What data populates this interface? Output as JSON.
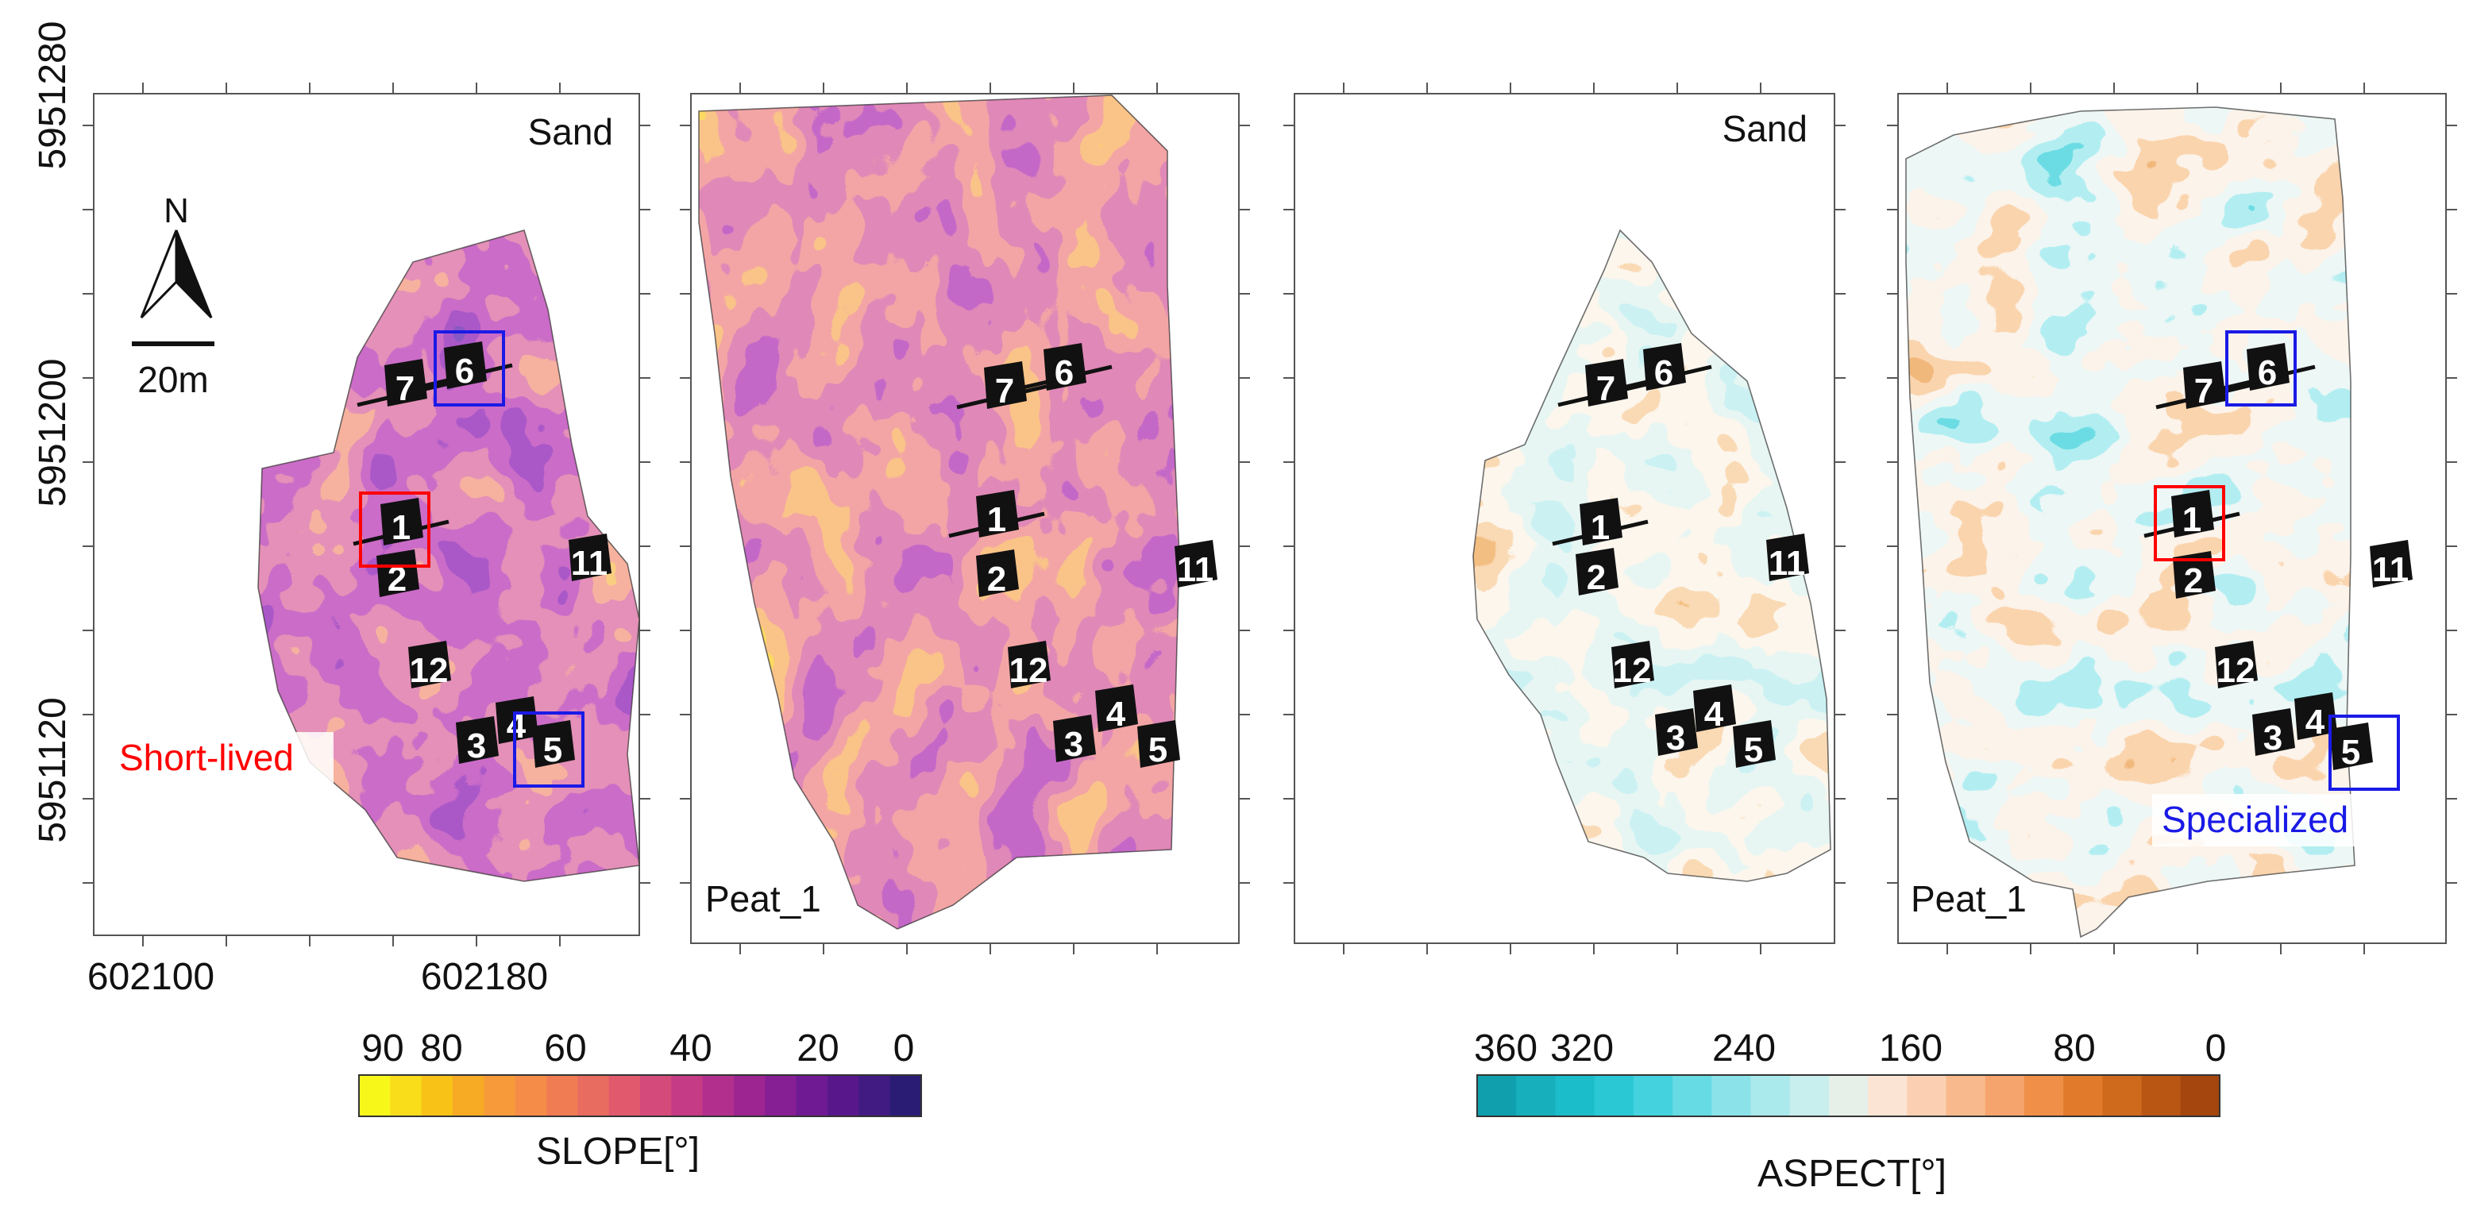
{
  "y_axis_ticks": [
    "5951280",
    "5951200",
    "5951120"
  ],
  "x_axis_ticks": [
    "602100",
    "602180"
  ],
  "panels": [
    {
      "label": "Sand"
    },
    {
      "label": "Peat_1"
    },
    {
      "label": "Sand"
    },
    {
      "label": "Peat_1"
    }
  ],
  "north_arrow": {
    "letter": "N",
    "scale_text": "20m"
  },
  "annotations": {
    "short_lived": "Short-lived",
    "specialized": "Specialized"
  },
  "site_labels": [
    "1",
    "2",
    "3",
    "4",
    "5",
    "6",
    "7",
    "11",
    "12"
  ],
  "slope_legend": {
    "title": "SLOPE[°]",
    "ticks": [
      "90",
      "80",
      "60",
      "40",
      "20",
      "0"
    ],
    "colors": [
      "#f8f71a",
      "#f9dc1a",
      "#f8c217",
      "#f7aa24",
      "#f79a3a",
      "#f58d48",
      "#f07c53",
      "#e96c60",
      "#e0596d",
      "#d44a7b",
      "#c53b86",
      "#b32f8e",
      "#9d2592",
      "#861e94",
      "#6f1a93",
      "#58188c",
      "#411a82",
      "#2a1c74"
    ],
    "color_names": [
      "yellow-high-slope",
      "purple-low-slope"
    ]
  },
  "aspect_legend": {
    "title": "ASPECT[°]",
    "ticks": [
      "360",
      "320",
      "240",
      "160",
      "80",
      "0"
    ],
    "colors": [
      "#10a0ad",
      "#18afbd",
      "#1cbdcb",
      "#2ac8d5",
      "#44d2de",
      "#66dbe4",
      "#8be3e9",
      "#aae9ec",
      "#c8eeee",
      "#e6efe8",
      "#fbe4d3",
      "#fbd0b2",
      "#f8ba8d",
      "#f4a46c",
      "#ef8f48",
      "#e27a2c",
      "#cf6a1d",
      "#b95614",
      "#a4460e"
    ],
    "color_names": [
      "teal-north",
      "orange-south"
    ]
  },
  "highlight_colors": {
    "short_lived": "#ff0000",
    "specialized": "#1a1ae6"
  }
}
